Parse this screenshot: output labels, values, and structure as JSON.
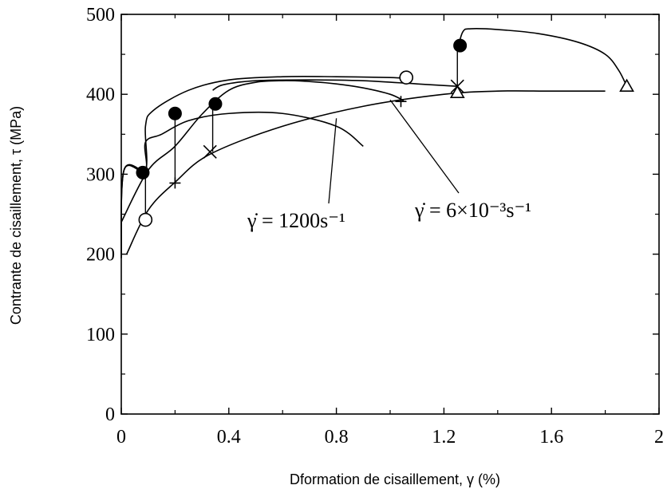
{
  "chart_data": {
    "type": "line",
    "xlabel": "Dformation de cisaillement, γ (%)",
    "ylabel": "Contrante de cisaillement, τ (MPa)",
    "xlim": [
      0,
      2
    ],
    "ylim": [
      0,
      500
    ],
    "x_ticks": [
      "0",
      "0.4",
      "0.8",
      "1.2",
      "1.6",
      "2"
    ],
    "y_ticks": [
      "0",
      "100",
      "200",
      "300",
      "400",
      "500"
    ],
    "grid": false,
    "annotations": [
      {
        "text": "γ̇ = 1200s⁻¹",
        "points_to": [
          0.8,
          370
        ]
      },
      {
        "text": "γ̇ = 6×10⁻³s⁻¹",
        "points_to": [
          1.0,
          393
        ]
      }
    ],
    "series": [
      {
        "marker": "filled-circle",
        "x": [
          0.0,
          0.01,
          0.09,
          0.09,
          0.12,
          0.25,
          0.4,
          0.6,
          0.8,
          1.0,
          1.05
        ],
        "y": [
          200,
          305,
          305,
          360,
          380,
          405,
          418,
          422,
          422,
          421,
          420
        ]
      },
      {
        "marker": "open-circle",
        "x": [
          0.0,
          0.01,
          0.09,
          0.09,
          0.15,
          0.25,
          0.4,
          0.6,
          0.8,
          0.9
        ],
        "y": [
          195,
          305,
          305,
          340,
          350,
          367,
          376,
          376,
          360,
          335
        ]
      },
      {
        "marker": "plus",
        "x": [
          0.0,
          0.1,
          0.2,
          0.3,
          0.4,
          0.5,
          0.6,
          0.7,
          0.8,
          0.9,
          1.0,
          1.05
        ],
        "y": [
          240,
          305,
          335,
          375,
          405,
          415,
          417,
          416,
          413,
          408,
          400,
          392
        ]
      },
      {
        "marker": "x",
        "x": [
          0.02,
          0.1,
          0.2,
          0.33,
          0.6,
          0.9,
          1.2,
          1.4,
          1.6,
          1.8
        ],
        "y": [
          200,
          255,
          290,
          325,
          360,
          385,
          400,
          404,
          404,
          404
        ]
      },
      {
        "marker": "filled-circle",
        "x": [
          0.34,
          0.38,
          0.5,
          0.7,
          0.9,
          1.1,
          1.25
        ],
        "y": [
          405,
          412,
          417,
          418,
          417,
          413,
          410
        ]
      },
      {
        "marker": "triangle",
        "x": [
          1.25,
          1.27,
          1.3,
          1.4,
          1.55,
          1.7,
          1.8,
          1.85,
          1.88
        ],
        "y": [
          455,
          478,
          482,
          481,
          476,
          465,
          450,
          430,
          410
        ]
      }
    ],
    "markers": [
      {
        "shape": "filled-circle",
        "x": 0.08,
        "y": 302
      },
      {
        "shape": "filled-circle",
        "x": 0.2,
        "y": 376
      },
      {
        "shape": "filled-circle",
        "x": 0.35,
        "y": 388
      },
      {
        "shape": "filled-circle",
        "x": 1.26,
        "y": 461
      },
      {
        "shape": "open-circle",
        "x": 0.09,
        "y": 243
      },
      {
        "shape": "open-circle",
        "x": 1.06,
        "y": 421
      },
      {
        "shape": "plus",
        "x": 0.2,
        "y": 289
      },
      {
        "shape": "plus",
        "x": 1.04,
        "y": 391
      },
      {
        "shape": "x",
        "x": 0.33,
        "y": 328
      },
      {
        "shape": "x",
        "x": 1.25,
        "y": 410
      },
      {
        "shape": "triangle",
        "x": 1.25,
        "y": 402
      },
      {
        "shape": "triangle",
        "x": 1.88,
        "y": 410
      }
    ],
    "drops": [
      {
        "x": 0.09,
        "y_from": 300,
        "y_to": 243
      },
      {
        "x": 0.2,
        "y_from": 376,
        "y_to": 289
      },
      {
        "x": 0.34,
        "y_from": 388,
        "y_to": 328
      },
      {
        "x": 1.25,
        "y_from": 461,
        "y_to": 402
      }
    ]
  }
}
